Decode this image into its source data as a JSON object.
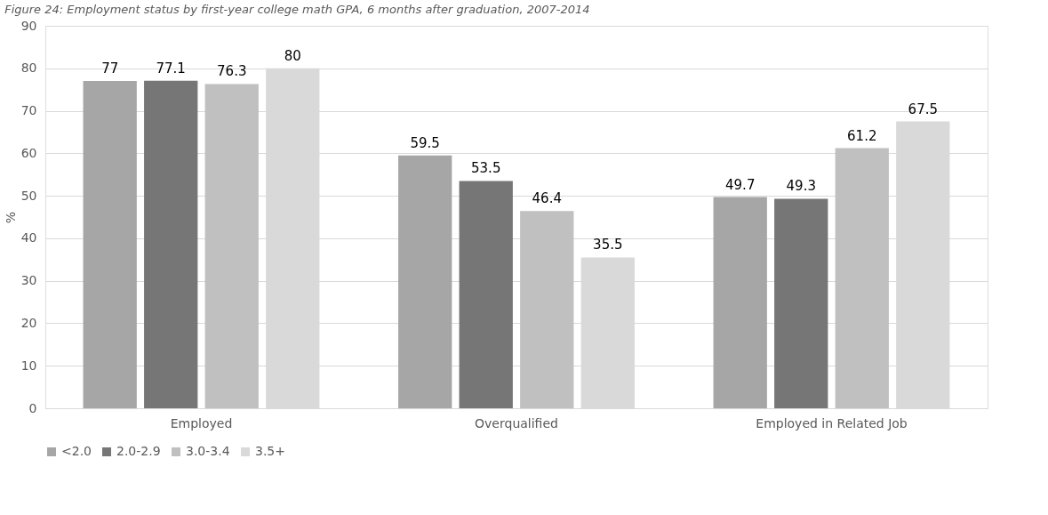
{
  "chart_data": {
    "type": "bar",
    "title": "Figure 24: Employment status by first-year college math GPA, 6 months after graduation, 2007-2014",
    "ylabel": "%",
    "categories": [
      "Employed",
      "Overqualified",
      "Employed in Related Job"
    ],
    "series": [
      {
        "name": "<2.0",
        "color": "#a6a6a6",
        "values": [
          77,
          59.5,
          49.7
        ]
      },
      {
        "name": "2.0-2.9",
        "color": "#767676",
        "values": [
          77.1,
          53.5,
          49.3
        ]
      },
      {
        "name": "3.0-3.4",
        "color": "#c0c0c0",
        "values": [
          76.3,
          46.4,
          61.2
        ]
      },
      {
        "name": "3.5+",
        "color": "#d9d9d9",
        "values": [
          80,
          35.5,
          67.5
        ]
      }
    ],
    "ylim": [
      0,
      90
    ],
    "yticks": [
      0,
      10,
      20,
      30,
      40,
      50,
      60,
      70,
      80,
      90
    ],
    "grid": "y",
    "legend": "bottom",
    "data_labels": true
  }
}
